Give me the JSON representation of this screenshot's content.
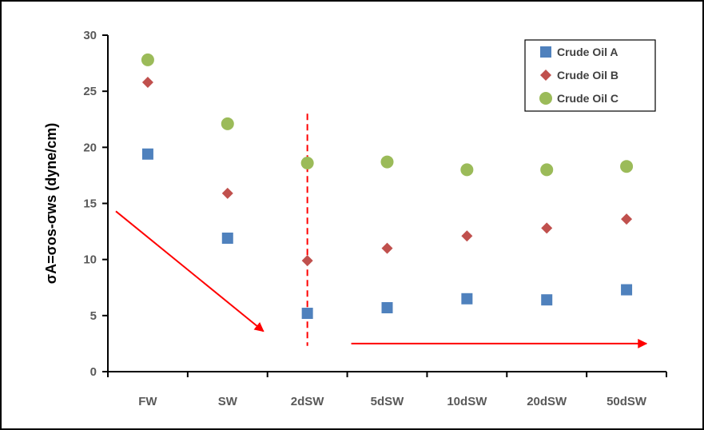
{
  "chart_data": {
    "type": "scatter",
    "categories": [
      "FW",
      "SW",
      "2dSW",
      "5dSW",
      "10dSW",
      "20dSW",
      "50dSW"
    ],
    "series": [
      {
        "name": "Crude Oil A",
        "values": [
          19.4,
          11.9,
          5.2,
          5.7,
          6.5,
          6.4,
          7.3
        ],
        "color": "#4f81bd",
        "marker": "square"
      },
      {
        "name": "Crude Oil B",
        "values": [
          25.8,
          15.9,
          9.9,
          11.0,
          12.1,
          12.8,
          13.6
        ],
        "color": "#c0504d",
        "marker": "diamond"
      },
      {
        "name": "Crude Oil C",
        "values": [
          27.8,
          22.1,
          18.6,
          18.7,
          18.0,
          18.0,
          18.3
        ],
        "color": "#9bbb59",
        "marker": "circle"
      }
    ],
    "xlabel": "",
    "ylabel": "σA=σos-σws  (dyne/cm)",
    "ylim": [
      0,
      30
    ],
    "yticks": [
      0,
      5,
      10,
      15,
      20,
      25,
      30
    ],
    "grid": false,
    "legend_position": "top-right",
    "annotations": {
      "dashed_line_at_category": "2dSW",
      "dashed_line_y_range": [
        2.3,
        23.0
      ],
      "arrow_color": "#ff0000",
      "arrow_1": {
        "from": [
          -0.4,
          14.3
        ],
        "to": [
          1.45,
          3.6
        ]
      },
      "arrow_2": {
        "from": [
          2.55,
          2.5
        ],
        "to": [
          6.25,
          2.5
        ]
      }
    }
  }
}
